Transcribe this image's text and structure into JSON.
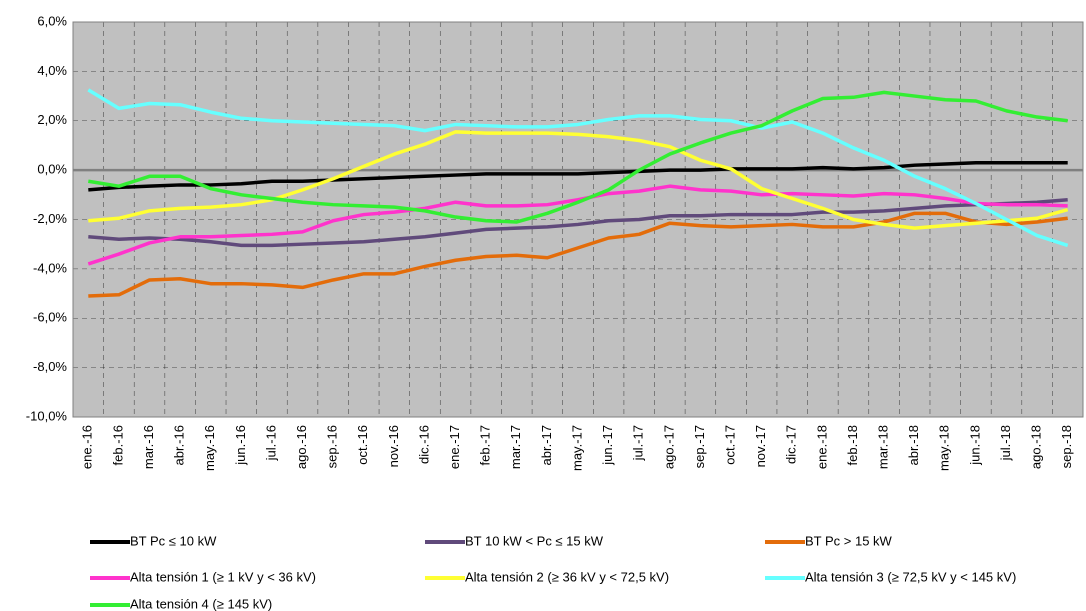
{
  "chart_data": {
    "type": "line",
    "categories": [
      "ene.-16",
      "feb.-16",
      "mar.-16",
      "abr.-16",
      "may.-16",
      "jun.-16",
      "jul.-16",
      "ago.-16",
      "sep.-16",
      "oct.-16",
      "nov.-16",
      "dic.-16",
      "ene.-17",
      "feb.-17",
      "mar.-17",
      "abr.-17",
      "may.-17",
      "jun.-17",
      "jul.-17",
      "ago.-17",
      "sep.-17",
      "oct.-17",
      "nov.-17",
      "dic.-17",
      "ene.-18",
      "feb.-18",
      "mar.-18",
      "abr.-18",
      "may.-18",
      "jun.-18",
      "jul.-18",
      "ago.-18",
      "sep.-18"
    ],
    "series": [
      {
        "name": "BT Pc ≤ 10 kW",
        "color": "#000000",
        "values": [
          -0.8,
          -0.7,
          -0.65,
          -0.6,
          -0.6,
          -0.55,
          -0.45,
          -0.45,
          -0.4,
          -0.35,
          -0.3,
          -0.25,
          -0.2,
          -0.15,
          -0.15,
          -0.15,
          -0.15,
          -0.1,
          -0.05,
          0,
          0,
          0.05,
          0.05,
          0.05,
          0.1,
          0.05,
          0.1,
          0.2,
          0.25,
          0.3,
          0.3,
          0.3,
          0.3
        ]
      },
      {
        "name": "BT 10 kW < Pc ≤ 15 kW",
        "color": "#604a7b",
        "values": [
          -2.7,
          -2.8,
          -2.75,
          -2.8,
          -2.9,
          -3.05,
          -3.05,
          -3.0,
          -2.95,
          -2.9,
          -2.8,
          -2.7,
          -2.55,
          -2.4,
          -2.35,
          -2.3,
          -2.2,
          -2.05,
          -2.0,
          -1.85,
          -1.85,
          -1.8,
          -1.8,
          -1.8,
          -1.7,
          -1.7,
          -1.65,
          -1.55,
          -1.45,
          -1.4,
          -1.35,
          -1.3,
          -1.2
        ]
      },
      {
        "name": "BT Pc > 15 kW",
        "color": "#e36c0a",
        "values": [
          -5.1,
          -5.05,
          -4.45,
          -4.4,
          -4.6,
          -4.6,
          -4.65,
          -4.75,
          -4.45,
          -4.2,
          -4.2,
          -3.9,
          -3.65,
          -3.5,
          -3.45,
          -3.55,
          -3.15,
          -2.75,
          -2.6,
          -2.15,
          -2.25,
          -2.3,
          -2.25,
          -2.2,
          -2.3,
          -2.3,
          -2.1,
          -1.75,
          -1.75,
          -2.1,
          -2.2,
          -2.1,
          -1.95
        ]
      },
      {
        "name": "Alta tensión 1 (≥  1 kV y  < 36 kV)",
        "color": "#ff33cc",
        "values": [
          -3.8,
          -3.4,
          -2.95,
          -2.7,
          -2.7,
          -2.65,
          -2.6,
          -2.5,
          -2.05,
          -1.8,
          -1.7,
          -1.55,
          -1.3,
          -1.45,
          -1.45,
          -1.4,
          -1.2,
          -0.95,
          -0.85,
          -0.65,
          -0.8,
          -0.85,
          -1.0,
          -0.95,
          -1.0,
          -1.05,
          -0.95,
          -1.0,
          -1.15,
          -1.35,
          -1.4,
          -1.4,
          -1.45
        ]
      },
      {
        "name": "Alta tensión 2 (≥  36 kV y < 72,5 kV)",
        "color": "#ffff33",
        "values": [
          -2.05,
          -1.95,
          -1.65,
          -1.55,
          -1.5,
          -1.4,
          -1.2,
          -0.8,
          -0.35,
          0.15,
          0.65,
          1.05,
          1.55,
          1.5,
          1.5,
          1.5,
          1.45,
          1.35,
          1.2,
          0.95,
          0.4,
          0.05,
          -0.75,
          -1.15,
          -1.55,
          -2.0,
          -2.2,
          -2.35,
          -2.25,
          -2.15,
          -2.05,
          -1.95,
          -1.6
        ]
      },
      {
        "name": "Alta tensión 3 (≥ 72,5 kV y < 145 kV)",
        "color": "#66ffff",
        "values": [
          3.25,
          2.5,
          2.7,
          2.65,
          2.35,
          2.1,
          2.0,
          1.95,
          1.9,
          1.85,
          1.8,
          1.6,
          1.85,
          1.8,
          1.75,
          1.75,
          1.85,
          2.05,
          2.2,
          2.2,
          2.05,
          2.0,
          1.7,
          1.95,
          1.5,
          0.9,
          0.4,
          -0.25,
          -0.75,
          -1.35,
          -2.0,
          -2.65,
          -3.05
        ]
      },
      {
        "name": "Alta tensión 4 (≥ 145 kV)",
        "color": "#33ee33",
        "values": [
          -0.45,
          -0.65,
          -0.25,
          -0.25,
          -0.75,
          -1.0,
          -1.15,
          -1.3,
          -1.4,
          -1.45,
          -1.5,
          -1.65,
          -1.9,
          -2.05,
          -2.1,
          -1.75,
          -1.3,
          -0.8,
          0,
          0.65,
          1.1,
          1.5,
          1.8,
          2.4,
          2.9,
          2.95,
          3.15,
          3.0,
          2.85,
          2.8,
          2.4,
          2.15,
          2.0
        ]
      }
    ],
    "ylim": [
      -10,
      6
    ],
    "yticks": [
      {
        "value": -10,
        "label": "-10,0%"
      },
      {
        "value": -8,
        "label": "-8,0%"
      },
      {
        "value": -6,
        "label": "-6,0%"
      },
      {
        "value": -4,
        "label": "-4,0%"
      },
      {
        "value": -2,
        "label": "-2,0%"
      },
      {
        "value": 0,
        "label": "0,0%"
      },
      {
        "value": 2,
        "label": "2,0%"
      },
      {
        "value": 4,
        "label": "4,0%"
      },
      {
        "value": 6,
        "label": "6,0%"
      }
    ],
    "grid": true
  }
}
